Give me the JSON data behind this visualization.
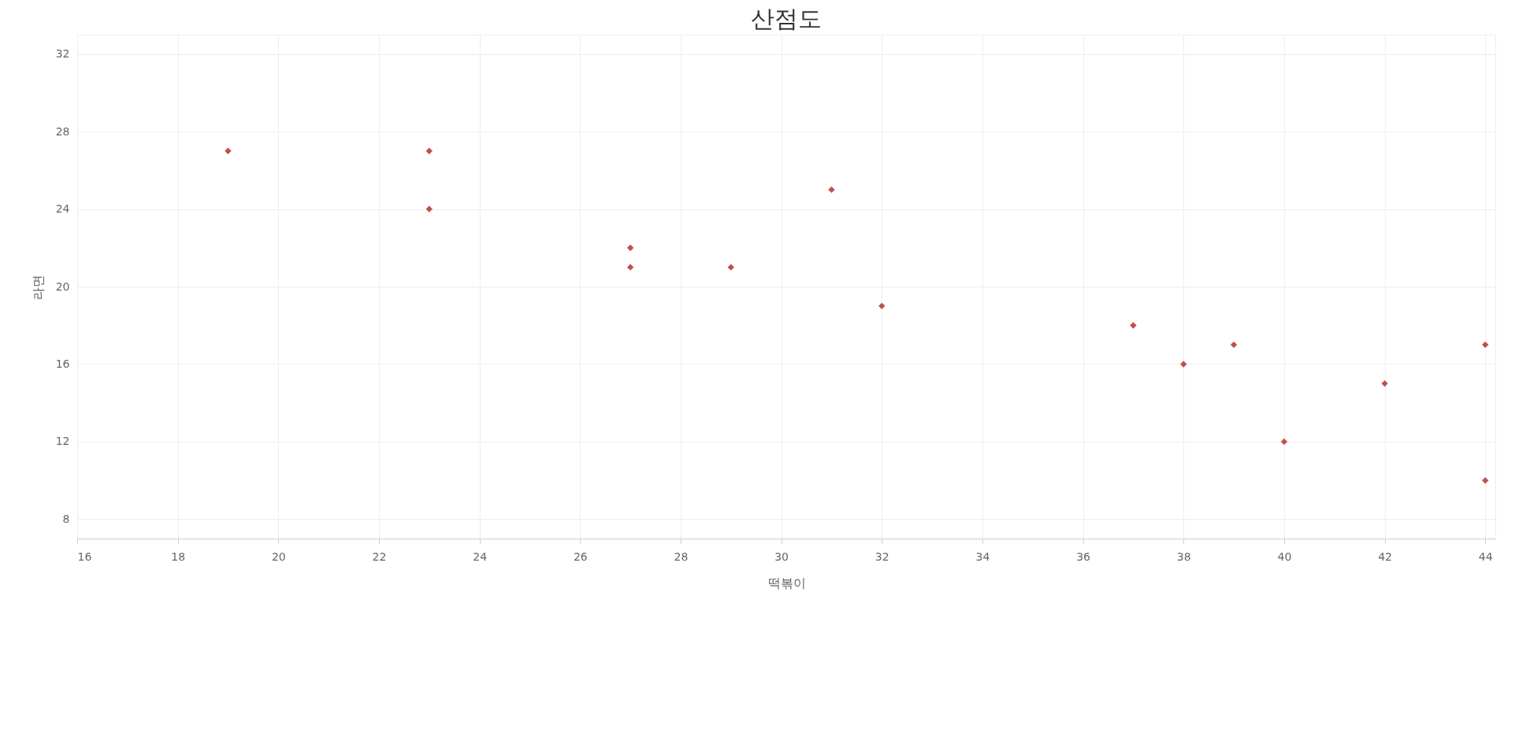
{
  "chart_data": {
    "type": "scatter",
    "title": "산점도",
    "xlabel": "떡볶이",
    "ylabel": "라면",
    "x": [
      19,
      23,
      23,
      27,
      27,
      29,
      31,
      32,
      37,
      38,
      39,
      40,
      42,
      44,
      44
    ],
    "series": [
      {
        "color": "#c0504d",
        "values": [
          27,
          27,
          24,
          22,
          21,
          21,
          25,
          19,
          18,
          16,
          17,
          12,
          15,
          17,
          10
        ]
      }
    ],
    "xlim": [
      16,
      44.2
    ],
    "ylim": [
      7,
      33
    ],
    "xticks": [
      16,
      18,
      20,
      22,
      24,
      26,
      28,
      30,
      32,
      34,
      36,
      38,
      40,
      42,
      44
    ],
    "yticks": [
      8,
      12,
      16,
      20,
      24,
      28,
      32
    ],
    "grid": true,
    "marker": "diamond",
    "legend": false
  }
}
